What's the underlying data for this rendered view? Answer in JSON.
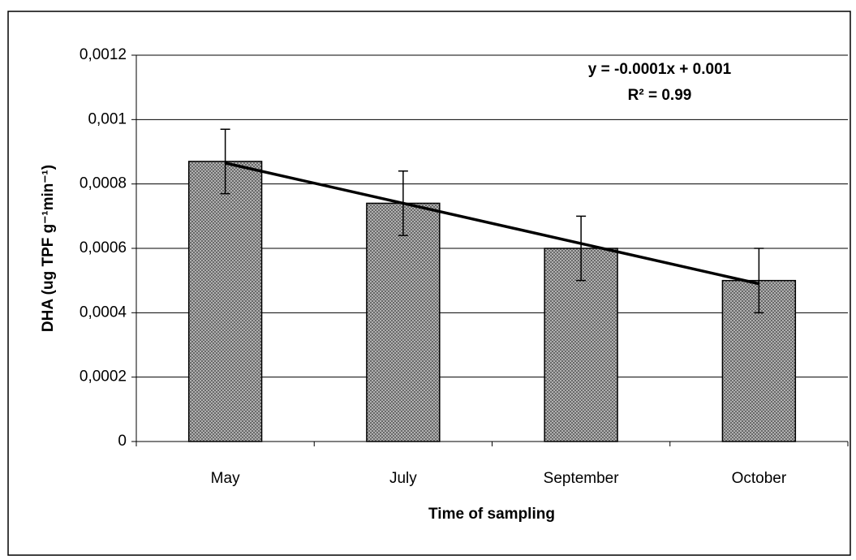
{
  "chart_data": {
    "type": "bar",
    "y_label": "DHA (ug TPF g⁻¹min⁻¹)",
    "x_label": "Time of sampling",
    "categories": [
      "May",
      "July",
      "September",
      "October"
    ],
    "values": [
      0.00087,
      0.00074,
      0.0006,
      0.0005
    ],
    "errors": [
      0.0001,
      0.0001,
      0.0001,
      0.0001
    ],
    "color": "#8c8c8c",
    "trendline": {
      "values": [
        0.000865,
        0.00074,
        0.000615,
        0.00049
      ],
      "color": "#000000",
      "equation": "y = -0.0001x + 0.001",
      "r_squared": "R² = 0.99"
    },
    "ylim": [
      0,
      0.0012
    ],
    "yticks": [
      0,
      {
        "value": 0.0002,
        "label": "0,0002"
      },
      {
        "value": 0.0004,
        "label": "0,0004"
      },
      {
        "value": 0.0006,
        "label": "0,0006"
      },
      {
        "value": 0.0008,
        "label": "0,0008"
      },
      {
        "value": 0.001,
        "label": "0,001"
      },
      {
        "value": 0.0012,
        "label": "0,0012"
      }
    ],
    "grid": true
  }
}
